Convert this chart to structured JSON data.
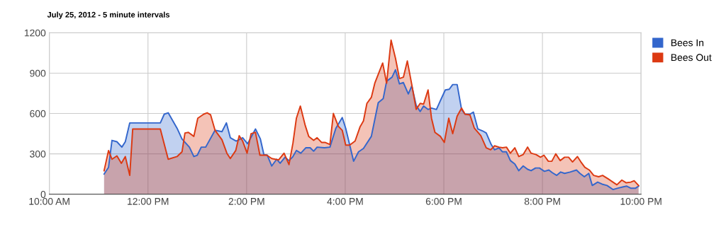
{
  "chart_data": {
    "type": "area",
    "title": "July 25, 2012 - 5 minute intervals",
    "series": [
      {
        "name": "Bees In",
        "color": "#3366cc",
        "x": [
          11.11,
          11.2,
          11.27,
          11.37,
          11.47,
          11.54,
          11.63,
          12.25,
          12.33,
          12.41,
          12.59,
          12.69,
          12.84,
          12.93,
          13.0,
          13.08,
          13.17,
          13.36,
          13.5,
          13.59,
          13.67,
          13.79,
          13.92,
          14.02,
          14.18,
          14.28,
          14.35,
          14.42,
          14.51,
          14.61,
          14.68,
          14.78,
          14.86,
          14.93,
          15.01,
          15.1,
          15.2,
          15.29,
          15.36,
          15.43,
          15.58,
          15.69,
          15.81,
          15.94,
          16.01,
          16.17,
          16.27,
          16.37,
          16.53,
          16.67,
          16.77,
          16.84,
          16.95,
          17.02,
          17.1,
          17.18,
          17.28,
          17.35,
          17.44,
          17.52,
          17.59,
          17.68,
          17.75,
          17.85,
          17.93,
          18.03,
          18.11,
          18.18,
          18.27,
          18.36,
          18.43,
          18.53,
          18.6,
          18.69,
          18.79,
          18.86,
          18.96,
          19.03,
          19.12,
          19.19,
          19.27,
          19.35,
          19.44,
          19.52,
          19.61,
          19.7,
          19.77,
          19.86,
          19.94,
          20.04,
          20.13,
          20.2,
          20.29,
          20.37,
          20.45,
          20.56,
          20.69,
          20.76,
          20.85,
          20.94,
          21.01,
          21.12,
          21.21,
          21.31,
          21.43,
          21.53,
          21.64,
          21.71,
          21.79,
          21.89,
          21.95
        ],
        "values": [
          150,
          200,
          400,
          390,
          350,
          390,
          530,
          530,
          595,
          605,
          490,
          410,
          350,
          280,
          290,
          350,
          350,
          475,
          465,
          530,
          420,
          395,
          420,
          375,
          485,
          410,
          295,
          290,
          210,
          260,
          230,
          275,
          250,
          275,
          325,
          305,
          345,
          345,
          320,
          350,
          345,
          350,
          490,
          570,
          490,
          245,
          315,
          340,
          430,
          680,
          710,
          840,
          870,
          925,
          820,
          830,
          745,
          805,
          660,
          615,
          655,
          630,
          640,
          630,
          695,
          775,
          780,
          815,
          815,
          630,
          595,
          595,
          610,
          485,
          470,
          455,
          370,
          330,
          345,
          315,
          315,
          250,
          225,
          175,
          210,
          185,
          175,
          195,
          195,
          170,
          180,
          160,
          140,
          165,
          155,
          165,
          180,
          155,
          130,
          155,
          65,
          90,
          75,
          65,
          35,
          45,
          55,
          60,
          45,
          45,
          60
        ]
      },
      {
        "name": "Bees Out",
        "color": "#dc3912",
        "x": [
          11.11,
          11.2,
          11.27,
          11.37,
          11.46,
          11.54,
          11.63,
          11.69,
          12.25,
          12.41,
          12.59,
          12.69,
          12.75,
          12.82,
          12.93,
          13.01,
          13.13,
          13.2,
          13.27,
          13.36,
          13.5,
          13.6,
          13.67,
          13.78,
          13.85,
          13.92,
          14.01,
          14.09,
          14.18,
          14.27,
          14.41,
          14.51,
          14.65,
          14.76,
          14.86,
          14.94,
          15.01,
          15.09,
          15.19,
          15.26,
          15.36,
          15.43,
          15.52,
          15.59,
          15.69,
          15.76,
          15.86,
          15.94,
          16.01,
          16.09,
          16.2,
          16.3,
          16.37,
          16.44,
          16.53,
          16.6,
          16.76,
          16.84,
          16.93,
          17.02,
          17.1,
          17.18,
          17.26,
          17.35,
          17.44,
          17.52,
          17.59,
          17.68,
          17.75,
          17.82,
          17.93,
          18.01,
          18.1,
          18.18,
          18.27,
          18.36,
          18.43,
          18.53,
          18.62,
          18.75,
          18.86,
          18.95,
          19.03,
          19.12,
          19.19,
          19.27,
          19.35,
          19.44,
          19.52,
          19.61,
          19.7,
          19.77,
          19.87,
          19.96,
          20.03,
          20.12,
          20.19,
          20.27,
          20.36,
          20.45,
          20.53,
          20.61,
          20.71,
          20.78,
          20.86,
          20.95,
          21.04,
          21.14,
          21.22,
          21.33,
          21.43,
          21.51,
          21.61,
          21.7,
          21.79,
          21.86,
          21.95
        ],
        "values": [
          175,
          325,
          260,
          285,
          230,
          280,
          140,
          485,
          485,
          260,
          280,
          315,
          455,
          460,
          430,
          565,
          595,
          605,
          590,
          475,
          405,
          305,
          265,
          325,
          435,
          395,
          305,
          450,
          460,
          290,
          290,
          265,
          255,
          305,
          220,
          380,
          565,
          655,
          510,
          430,
          400,
          420,
          385,
          385,
          370,
          600,
          505,
          475,
          365,
          365,
          395,
          500,
          545,
          675,
          720,
          825,
          975,
          825,
          1145,
          1010,
          860,
          870,
          990,
          815,
          630,
          675,
          670,
          775,
          565,
          460,
          430,
          385,
          565,
          450,
          580,
          640,
          595,
          590,
          490,
          435,
          345,
          330,
          360,
          350,
          345,
          350,
          305,
          345,
          280,
          295,
          350,
          305,
          295,
          275,
          290,
          245,
          245,
          300,
          250,
          275,
          275,
          240,
          280,
          240,
          200,
          180,
          140,
          130,
          140,
          115,
          90,
          70,
          105,
          85,
          90,
          100,
          65
        ]
      }
    ],
    "xlim": [
      10,
      22
    ],
    "xticks": [
      {
        "value": 10,
        "label": "10:00 AM"
      },
      {
        "value": 12,
        "label": "12:00 PM"
      },
      {
        "value": 14,
        "label": "2:00 PM"
      },
      {
        "value": 16,
        "label": "4:00 PM"
      },
      {
        "value": 18,
        "label": "6:00 PM"
      },
      {
        "value": 20,
        "label": "8:00 PM"
      },
      {
        "value": 22,
        "label": "10:00 PM"
      }
    ],
    "ylim": [
      0,
      1200
    ],
    "yticks": [
      0,
      300,
      600,
      900,
      1200
    ],
    "grid": true,
    "legend": "top right"
  }
}
